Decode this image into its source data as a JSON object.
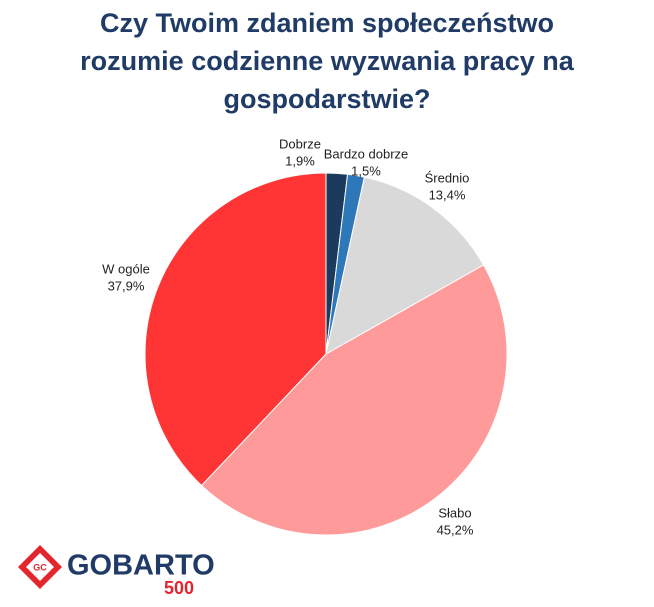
{
  "chart_data": {
    "type": "pie",
    "title": "Czy Twoim zdaniem społeczeństwo rozumie codzienne wyzwania pracy na gospodarstwie?",
    "categories": [
      "Dobrze",
      "Bardzo dobrze",
      "Średnio",
      "Słabo",
      "W ogóle"
    ],
    "values": [
      1.9,
      1.5,
      13.4,
      45.2,
      37.9
    ],
    "value_labels": [
      "1,9%",
      "1,5%",
      "13,4%",
      "45,2%",
      "37,9%"
    ],
    "colors": [
      "#1b3a5e",
      "#2e77b8",
      "#d9d9d9",
      "#ff9a9a",
      "#ff3535"
    ]
  },
  "logo": {
    "name": "GOBARTO",
    "number": "500",
    "badge": "GC"
  }
}
